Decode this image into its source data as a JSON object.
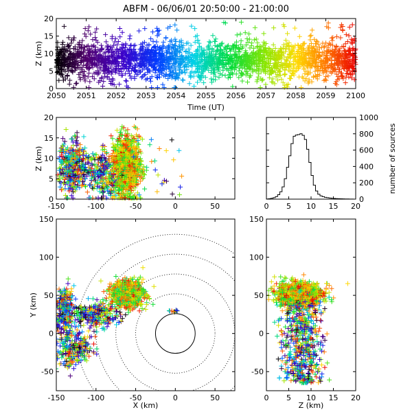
{
  "title": "ABFM - 06/06/01 20:50:00 - 21:00:00",
  "colors": {
    "axis": "#000000",
    "markers_scale": "rainbow (black → purple → blue → cyan → green → yellow → orange → red) by time"
  },
  "chart_data": [
    {
      "name": "time-height",
      "type": "scatter",
      "xlabel": "Time (UT)",
      "ylabel": "Z (km)",
      "xlim": [
        2050,
        2100
      ],
      "ylim": [
        0,
        20
      ],
      "xticks": [
        "2050",
        "2051",
        "2052",
        "2053",
        "2054",
        "2055",
        "2056",
        "2057",
        "2058",
        "2059",
        "2100"
      ],
      "yticks": [
        "0",
        "5",
        "10",
        "15",
        "20"
      ],
      "marker": "+",
      "density_z_range_km": [
        2,
        12
      ],
      "density_center_km": 8
    },
    {
      "name": "x-z",
      "type": "scatter",
      "xlabel": "",
      "ylabel": "Z (km)",
      "xlim": [
        -150,
        75
      ],
      "ylim": [
        0,
        20
      ],
      "xticks": [
        "-150",
        "-100",
        "-50",
        "0",
        "50"
      ],
      "yticks": [
        "0",
        "5",
        "10",
        "15",
        "20"
      ],
      "marker": "+",
      "clusters": [
        {
          "x": -130,
          "z": 8,
          "sx": 10,
          "sz": 3
        },
        {
          "x": -62,
          "z": 8,
          "sx": 9,
          "sz": 3.5
        },
        {
          "x": -92,
          "z": 6,
          "sx": 10,
          "sz": 3
        }
      ]
    },
    {
      "name": "altitude-histogram",
      "type": "bar",
      "xlabel": "",
      "ylabel": "number of sources",
      "xlim": [
        0,
        20
      ],
      "ylim": [
        0,
        1000
      ],
      "xticks": [
        "0",
        "5",
        "10",
        "15",
        "20"
      ],
      "yticks": [
        "0",
        "200",
        "400",
        "600",
        "800",
        "1000"
      ],
      "bin_width_km": 0.5,
      "bin_starts_km": [
        0,
        0.5,
        1,
        1.5,
        2,
        2.5,
        3,
        3.5,
        4,
        4.5,
        5,
        5.5,
        6,
        6.5,
        7,
        7.5,
        8,
        8.5,
        9,
        9.5,
        10,
        10.5,
        11,
        11.5,
        12,
        12.5,
        13,
        13.5,
        14,
        14.5,
        15,
        15.5,
        16,
        16.5,
        17,
        17.5,
        18,
        18.5,
        19,
        19.5
      ],
      "counts": [
        2,
        5,
        10,
        18,
        30,
        55,
        90,
        150,
        250,
        390,
        530,
        680,
        770,
        785,
        790,
        800,
        780,
        730,
        610,
        450,
        290,
        170,
        100,
        60,
        40,
        30,
        22,
        18,
        14,
        10,
        8,
        6,
        5,
        4,
        3,
        2,
        2,
        1,
        1,
        0
      ]
    },
    {
      "name": "plan-view",
      "type": "scatter",
      "xlabel": "X (km)",
      "ylabel": "Y (km)",
      "xlim": [
        -150,
        75
      ],
      "ylim": [
        -75,
        150
      ],
      "xticks": [
        "-150",
        "-100",
        "-50",
        "0",
        "50"
      ],
      "yticks": [
        "-50",
        "0",
        "50",
        "100",
        "150"
      ],
      "marker": "+",
      "range_rings_km": [
        25,
        50,
        75,
        100,
        125
      ],
      "clusters": [
        {
          "x": -60,
          "y": 52,
          "sx": 10,
          "sy": 8
        },
        {
          "x": -140,
          "y": 30,
          "sx": 6,
          "sy": 15
        },
        {
          "x": -130,
          "y": -20,
          "sx": 12,
          "sy": 12
        },
        {
          "x": -100,
          "y": 25,
          "sx": 15,
          "sy": 8
        }
      ]
    },
    {
      "name": "y-z",
      "type": "scatter",
      "xlabel": "Z (km)",
      "ylabel": "",
      "xlim": [
        0,
        20
      ],
      "ylim": [
        -75,
        150
      ],
      "xticks": [
        "0",
        "5",
        "10",
        "15",
        "20"
      ],
      "yticks": [
        "-50",
        "0",
        "50",
        "100",
        "150"
      ],
      "marker": "+"
    }
  ]
}
